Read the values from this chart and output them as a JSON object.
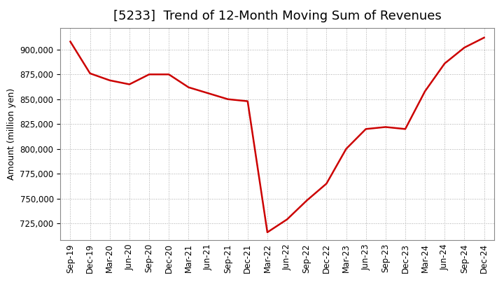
{
  "title": "[5233]  Trend of 12-Month Moving Sum of Revenues",
  "ylabel": "Amount (million yen)",
  "line_color": "#cc0000",
  "background_color": "#ffffff",
  "grid_color": "#aaaaaa",
  "x_labels": [
    "Sep-19",
    "Dec-19",
    "Mar-20",
    "Jun-20",
    "Sep-20",
    "Dec-20",
    "Mar-21",
    "Jun-21",
    "Sep-21",
    "Dec-21",
    "Mar-22",
    "Jun-22",
    "Sep-22",
    "Dec-22",
    "Mar-23",
    "Jun-23",
    "Sep-23",
    "Dec-23",
    "Mar-24",
    "Jun-24",
    "Sep-24",
    "Dec-24"
  ],
  "x_values": [
    0,
    1,
    2,
    3,
    4,
    5,
    6,
    7,
    8,
    9,
    10,
    11,
    12,
    13,
    14,
    15,
    16,
    17,
    18,
    19,
    20,
    21
  ],
  "y_values": [
    908000,
    876000,
    869000,
    865000,
    875000,
    875000,
    862000,
    856000,
    850000,
    848000,
    716000,
    729000,
    748000,
    765000,
    800000,
    820000,
    822000,
    820000,
    858000,
    886000,
    902000,
    912000
  ],
  "ylim": [
    708000,
    922000
  ],
  "yticks": [
    725000,
    750000,
    775000,
    800000,
    825000,
    850000,
    875000,
    900000
  ],
  "title_fontsize": 13,
  "axis_fontsize": 9,
  "tick_fontsize": 8.5,
  "line_width": 1.8
}
